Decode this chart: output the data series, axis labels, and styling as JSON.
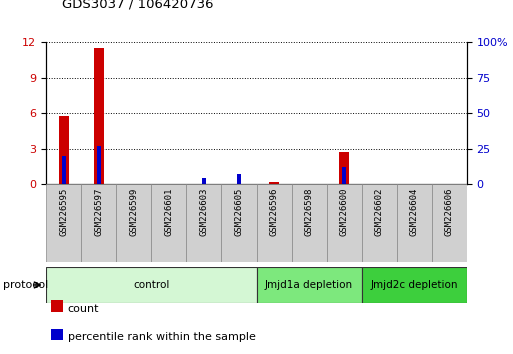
{
  "title": "GDS3037 / 106420736",
  "samples": [
    "GSM226595",
    "GSM226597",
    "GSM226599",
    "GSM226601",
    "GSM226603",
    "GSM226605",
    "GSM226596",
    "GSM226598",
    "GSM226600",
    "GSM226602",
    "GSM226604",
    "GSM226606"
  ],
  "count_values": [
    5.8,
    11.5,
    0,
    0,
    0,
    0,
    0.2,
    0,
    2.7,
    0,
    0,
    0
  ],
  "percentile_values": [
    20,
    27,
    0,
    0,
    4,
    7,
    0,
    0,
    12,
    0,
    0,
    0
  ],
  "ylim_left": [
    0,
    12
  ],
  "ylim_right": [
    0,
    100
  ],
  "yticks_left": [
    0,
    3,
    6,
    9,
    12
  ],
  "yticks_right": [
    0,
    25,
    50,
    75,
    100
  ],
  "ytick_labels_right": [
    "0",
    "25",
    "50",
    "75",
    "100%"
  ],
  "groups": [
    {
      "label": "control",
      "start": 0,
      "end": 6,
      "color": "#d4f7d4"
    },
    {
      "label": "Jmjd1a depletion",
      "start": 6,
      "end": 9,
      "color": "#7de87d"
    },
    {
      "label": "Jmjd2c depletion",
      "start": 9,
      "end": 12,
      "color": "#3dcf3d"
    }
  ],
  "protocol_label": "protocol",
  "bar_color_count": "#cc0000",
  "bar_color_percentile": "#0000cc",
  "legend_count_label": "count",
  "legend_percentile_label": "percentile rank within the sample",
  "bar_width": 0.5,
  "tick_label_color_left": "#cc0000",
  "tick_label_color_right": "#0000cc",
  "sample_box_color": "#d0d0d0",
  "bg_color": "#ffffff"
}
